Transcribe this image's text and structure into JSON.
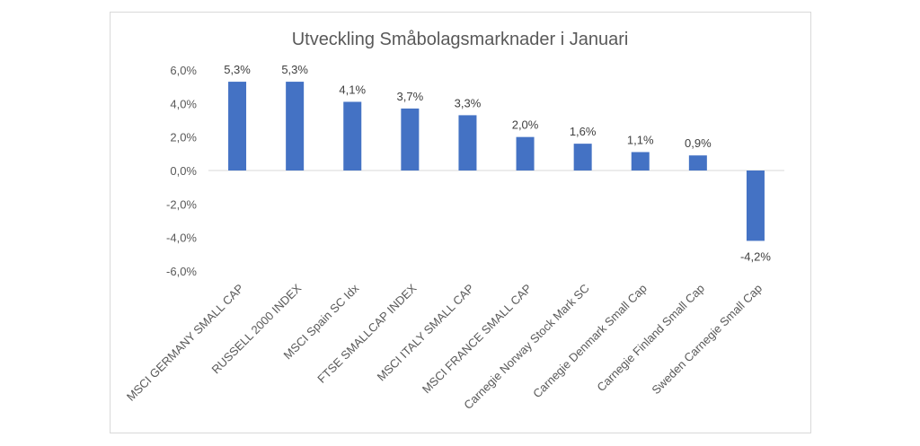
{
  "chart_data": {
    "type": "bar",
    "title": "Utveckling Småbolagsmarknader i Januari",
    "xlabel": "",
    "ylabel": "",
    "ylim": [
      -6,
      6
    ],
    "yticks": [
      6,
      4,
      2,
      0,
      -2,
      -4,
      -6
    ],
    "ytick_labels": [
      "6,0%",
      "4,0%",
      "2,0%",
      "0,0%",
      "-2,0%",
      "-4,0%",
      "-6,0%"
    ],
    "categories": [
      "MSCI GERMANY SMALL CAP",
      "RUSSELL 2000 INDEX",
      "MSCI Spain SC Idx",
      "FTSE SMALLCAP INDEX",
      "MSCI ITALY SMALL CAP",
      "MSCI FRANCE SMALL CAP",
      "Carnegie Norway Stock Mark SC",
      "Carnegie Denmark Small Cap",
      "Carnegie Finland Small Cap",
      "Sweden Carnegie Small Cap"
    ],
    "values": [
      5.3,
      5.3,
      4.1,
      3.7,
      3.3,
      2.0,
      1.6,
      1.1,
      0.9,
      -4.2
    ],
    "data_labels": [
      "5,3%",
      "5,3%",
      "4,1%",
      "3,7%",
      "3,3%",
      "2,0%",
      "1,6%",
      "1,1%",
      "0,9%",
      "-4,2%"
    ],
    "bar_color": "#4472C4",
    "grid": false,
    "legend": "none"
  }
}
